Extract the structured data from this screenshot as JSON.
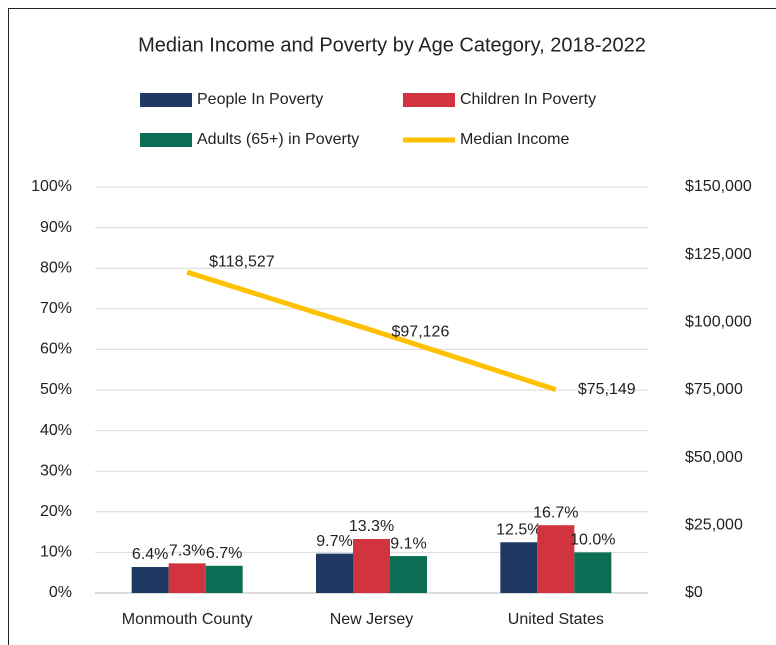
{
  "chart_data": {
    "type": "bar",
    "title": "Median Income and Poverty by Age Category, 2018-2022",
    "categories": [
      "Monmouth County",
      "New Jersey",
      "United States"
    ],
    "series": [
      {
        "name": "People In Poverty",
        "color": "#1f3864",
        "type": "bar",
        "values": [
          6.4,
          9.7,
          12.5
        ],
        "value_labels": [
          "6.4%",
          "9.7%",
          "12.5%"
        ]
      },
      {
        "name": "Children In Poverty",
        "color": "#d1343e",
        "type": "bar",
        "values": [
          7.3,
          13.3,
          16.7
        ],
        "value_labels": [
          "7.3%",
          "13.3%",
          "16.7%"
        ]
      },
      {
        "name": "Adults (65+) in Poverty",
        "color": "#0b6e55",
        "type": "bar",
        "values": [
          6.7,
          9.1,
          10.0
        ],
        "value_labels": [
          "6.7%",
          "9.1%",
          "10.0%"
        ]
      },
      {
        "name": "Median Income",
        "color": "#ffc000",
        "type": "line",
        "axis": "y2",
        "values": [
          118527,
          97126,
          75149
        ],
        "value_labels": [
          "$118,527",
          "$97,126",
          "$75,149"
        ]
      }
    ],
    "ylim": [
      0,
      100
    ],
    "yticks": [
      {
        "value": 0,
        "label": "0%"
      },
      {
        "value": 10,
        "label": "10%"
      },
      {
        "value": 20,
        "label": "20%"
      },
      {
        "value": 30,
        "label": "30%"
      },
      {
        "value": 40,
        "label": "40%"
      },
      {
        "value": 50,
        "label": "50%"
      },
      {
        "value": 60,
        "label": "60%"
      },
      {
        "value": 70,
        "label": "70%"
      },
      {
        "value": 80,
        "label": "80%"
      },
      {
        "value": 90,
        "label": "90%"
      },
      {
        "value": 100,
        "label": "100%"
      }
    ],
    "y2lim": [
      0,
      150000
    ],
    "y2ticks": [
      {
        "value": 0,
        "label": "$0"
      },
      {
        "value": 25000,
        "label": "$25,000"
      },
      {
        "value": 50000,
        "label": "$50,000"
      },
      {
        "value": 75000,
        "label": "$75,000"
      },
      {
        "value": 100000,
        "label": "$100,000"
      },
      {
        "value": 125000,
        "label": "$125,000"
      },
      {
        "value": 150000,
        "label": "$150,000"
      }
    ],
    "grid": true,
    "legend": "top"
  }
}
